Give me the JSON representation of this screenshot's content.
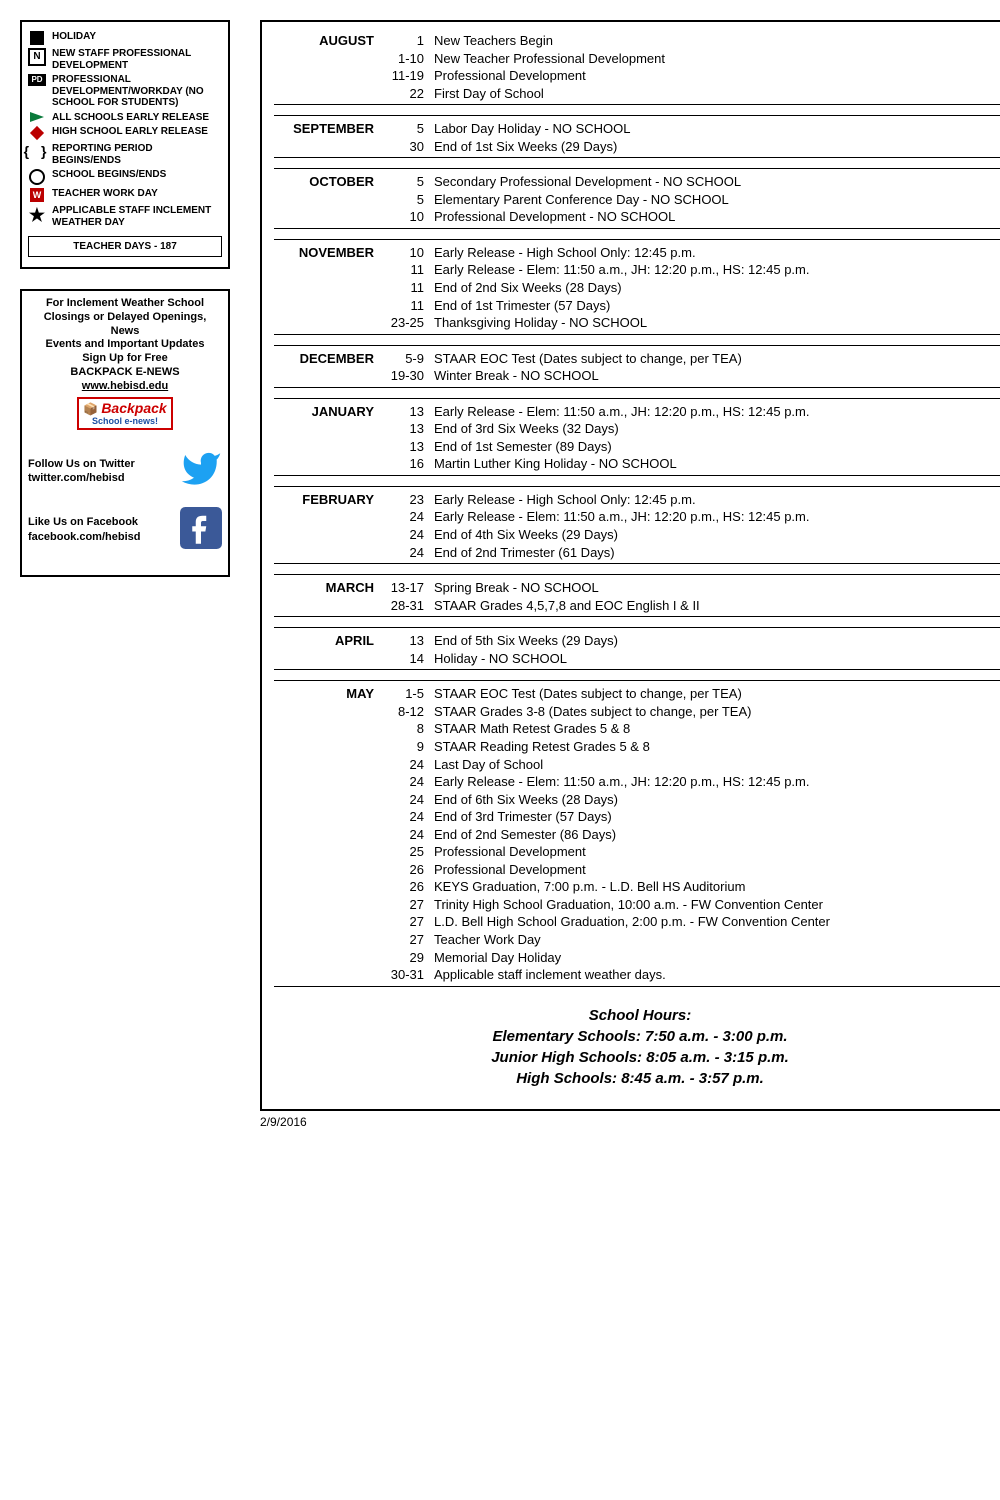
{
  "legend": {
    "items": [
      {
        "label": "HOLIDAY"
      },
      {
        "label": "NEW STAFF PROFESSIONAL DEVELOPMENT"
      },
      {
        "label": "PROFESSIONAL DEVELOPMENT/WORKDAY (NO SCHOOL FOR STUDENTS)"
      },
      {
        "label": "ALL SCHOOLS EARLY RELEASE"
      },
      {
        "label": "HIGH SCHOOL EARLY RELEASE"
      },
      {
        "label": "REPORTING PERIOD BEGINS/ENDS"
      },
      {
        "label": "SCHOOL BEGINS/ENDS"
      },
      {
        "label": "TEACHER WORK DAY"
      },
      {
        "label": "APPLICABLE STAFF INCLEMENT WEATHER DAY"
      }
    ],
    "teacher_days": "TEACHER DAYS - 187"
  },
  "info": {
    "line1": "For Inclement Weather School",
    "line2": "Closings or Delayed Openings, News",
    "line3": "Events and Important Updates",
    "line4": "Sign Up for Free",
    "line5": "BACKPACK E-NEWS",
    "line6": "www.hebisd.edu",
    "badge1": "Backpack",
    "badge2": "School e-news!",
    "twitter_l1": "Follow Us on Twitter",
    "twitter_l2": "twitter.com/hebisd",
    "fb_l1": "Like Us on Facebook",
    "fb_l2": "facebook.com/hebisd"
  },
  "calendar": [
    {
      "month": "AUGUST",
      "events": [
        {
          "date": "1",
          "desc": "New Teachers Begin"
        },
        {
          "date": "1-10",
          "desc": "New Teacher Professional Development"
        },
        {
          "date": "11-19",
          "desc": "Professional Development"
        },
        {
          "date": "22",
          "desc": "First Day of School"
        }
      ]
    },
    {
      "month": "SEPTEMBER",
      "events": [
        {
          "date": "5",
          "desc": "Labor Day Holiday - NO SCHOOL"
        },
        {
          "date": "30",
          "desc": "End of 1st Six Weeks  (29 Days)"
        }
      ]
    },
    {
      "month": "OCTOBER",
      "events": [
        {
          "date": "5",
          "desc": "Secondary Professional Development - NO SCHOOL"
        },
        {
          "date": "5",
          "desc": "Elementary Parent Conference Day - NO SCHOOL"
        },
        {
          "date": "10",
          "desc": "Professional Development - NO SCHOOL"
        }
      ]
    },
    {
      "month": "NOVEMBER",
      "events": [
        {
          "date": "10",
          "desc": "Early Release - High School Only: 12:45 p.m."
        },
        {
          "date": "11",
          "desc": "Early Release - Elem: 11:50 a.m., JH: 12:20 p.m., HS: 12:45 p.m."
        },
        {
          "date": "11",
          "desc": "End of 2nd Six Weeks  (28 Days)"
        },
        {
          "date": "11",
          "desc": "End of 1st Trimester  (57 Days)"
        },
        {
          "date": "23-25",
          "desc": "Thanksgiving Holiday -  NO SCHOOL"
        }
      ]
    },
    {
      "month": "DECEMBER",
      "events": [
        {
          "date": "5-9",
          "desc": "STAAR EOC Test (Dates subject to change, per TEA)"
        },
        {
          "date": "19-30",
          "desc": "Winter Break -  NO SCHOOL"
        }
      ]
    },
    {
      "month": "JANUARY",
      "events": [
        {
          "date": "13",
          "desc": "Early Release - Elem: 11:50 a.m., JH: 12:20 p.m., HS: 12:45 p.m."
        },
        {
          "date": "13",
          "desc": "End of 3rd Six Weeks (32 Days)"
        },
        {
          "date": "13",
          "desc": "End of 1st Semester (89 Days)"
        },
        {
          "date": "16",
          "desc": "Martin Luther King Holiday -  NO SCHOOL"
        }
      ]
    },
    {
      "month": "FEBRUARY",
      "events": [
        {
          "date": "23",
          "desc": "Early Release - High School Only: 12:45 p.m."
        },
        {
          "date": "24",
          "desc": "Early Release - Elem: 11:50 a.m., JH: 12:20 p.m., HS: 12:45 p.m."
        },
        {
          "date": "24",
          "desc": "End of 4th Six Weeks (29 Days)"
        },
        {
          "date": "24",
          "desc": "End of 2nd Trimester  (61 Days)"
        }
      ]
    },
    {
      "month": "MARCH",
      "events": [
        {
          "date": "13-17",
          "desc": "Spring Break - NO SCHOOL"
        },
        {
          "date": "28-31",
          "desc": "STAAR Grades 4,5,7,8 and EOC English I & II"
        }
      ]
    },
    {
      "month": "APRIL",
      "events": [
        {
          "date": "13",
          "desc": "End of 5th Six Weeks (29 Days)"
        },
        {
          "date": "14",
          "desc": "Holiday - NO SCHOOL"
        }
      ]
    },
    {
      "month": "MAY",
      "events": [
        {
          "date": "1-5",
          "desc": "STAAR EOC Test (Dates subject to change, per TEA)"
        },
        {
          "date": "8-12",
          "desc": "STAAR Grades 3-8 (Dates subject to change, per TEA)"
        },
        {
          "date": "8",
          "desc": "STAAR Math Retest Grades 5 & 8"
        },
        {
          "date": "9",
          "desc": "STAAR Reading Retest Grades 5 & 8"
        },
        {
          "date": "24",
          "desc": "Last Day of School"
        },
        {
          "date": "24",
          "desc": "Early Release - Elem: 11:50 a.m., JH: 12:20 p.m., HS: 12:45 p.m."
        },
        {
          "date": "24",
          "desc": "End of 6th Six Weeks (28 Days)"
        },
        {
          "date": "24",
          "desc": "End of 3rd Trimester (57 Days)"
        },
        {
          "date": "24",
          "desc": "End of 2nd Semester (86 Days)"
        },
        {
          "date": "25",
          "desc": "Professional Development"
        },
        {
          "date": "26",
          "desc": "Professional Development"
        },
        {
          "date": "26",
          "desc": "KEYS Graduation, 7:00 p.m. - L.D. Bell HS Auditorium"
        },
        {
          "date": "27",
          "desc": "Trinity High School Graduation, 10:00 a.m. - FW Convention Center"
        },
        {
          "date": "27",
          "desc": "L.D. Bell High School Graduation, 2:00 p.m. - FW Convention Center"
        },
        {
          "date": "27",
          "desc": "Teacher Work Day"
        },
        {
          "date": "29",
          "desc": "Memorial Day Holiday"
        },
        {
          "date": "30-31",
          "desc": "Applicable staff inclement weather days."
        }
      ]
    }
  ],
  "hours": {
    "title": "School Hours:",
    "elem": "Elementary Schools: 7:50 a.m. - 3:00 p.m.",
    "jh": "Junior High Schools: 8:05 a.m. - 3:15 p.m.",
    "hs": "High Schools: 8:45 a.m. - 3:57 p.m."
  },
  "footer_date": "2/9/2016"
}
